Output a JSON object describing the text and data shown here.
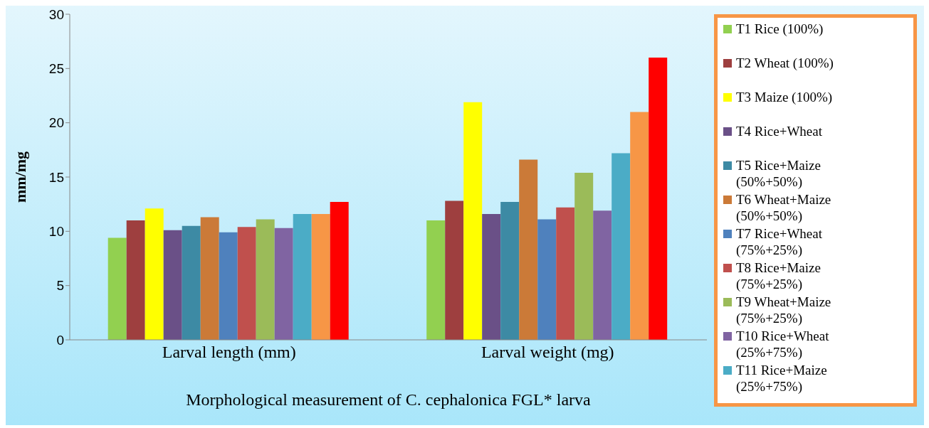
{
  "chart_data": {
    "type": "bar",
    "xlabel": "Morphological measurement of C. cephalonica FGL* larva",
    "ylabel": "mm/mg",
    "categories": [
      "Larval length (mm)",
      "Larval weight (mg)"
    ],
    "ylim": [
      0,
      30
    ],
    "yticks": [
      0,
      5,
      10,
      15,
      20,
      25,
      30
    ],
    "legend": "right",
    "series": [
      {
        "name": "T1 Rice (100%)",
        "color": "#92d050",
        "values": [
          9.4,
          11.0
        ]
      },
      {
        "name": "T2 Wheat (100%)",
        "color": "#9e3f3f",
        "values": [
          11.0,
          12.8
        ]
      },
      {
        "name": "T3 Maize (100%)",
        "color": "#ffff00",
        "values": [
          12.1,
          21.9
        ]
      },
      {
        "name": "T4 Rice+Wheat",
        "color": "#6a5087",
        "values": [
          10.1,
          11.6
        ]
      },
      {
        "name": "T5 Rice+Maize (50%+50%)",
        "color": "#3d8aa4",
        "values": [
          10.5,
          12.7
        ]
      },
      {
        "name": "T6 Wheat+Maize (50%+50%)",
        "color": "#cb7a38",
        "values": [
          11.3,
          16.6
        ]
      },
      {
        "name": "T7 Rice+Wheat (75%+25%)",
        "color": "#4f81bd",
        "values": [
          9.9,
          11.1
        ]
      },
      {
        "name": "T8 Rice+Maize (75%+25%)",
        "color": "#c0504d",
        "values": [
          10.4,
          12.2
        ]
      },
      {
        "name": "T9 Wheat+Maize (75%+25%)",
        "color": "#9bbb59",
        "values": [
          11.1,
          15.4
        ]
      },
      {
        "name": "T10 Rice+Wheat (25%+75%)",
        "color": "#8064a2",
        "values": [
          10.3,
          11.9
        ]
      },
      {
        "name": "T11 Rice+Maize (25%+75%)",
        "color": "#4bacc6",
        "values": [
          11.6,
          17.2
        ]
      },
      {
        "color": "#f79646",
        "values": [
          11.6,
          21.0
        ]
      },
      {
        "color": "#ff0000",
        "values": [
          12.7,
          26.0
        ]
      }
    ]
  }
}
